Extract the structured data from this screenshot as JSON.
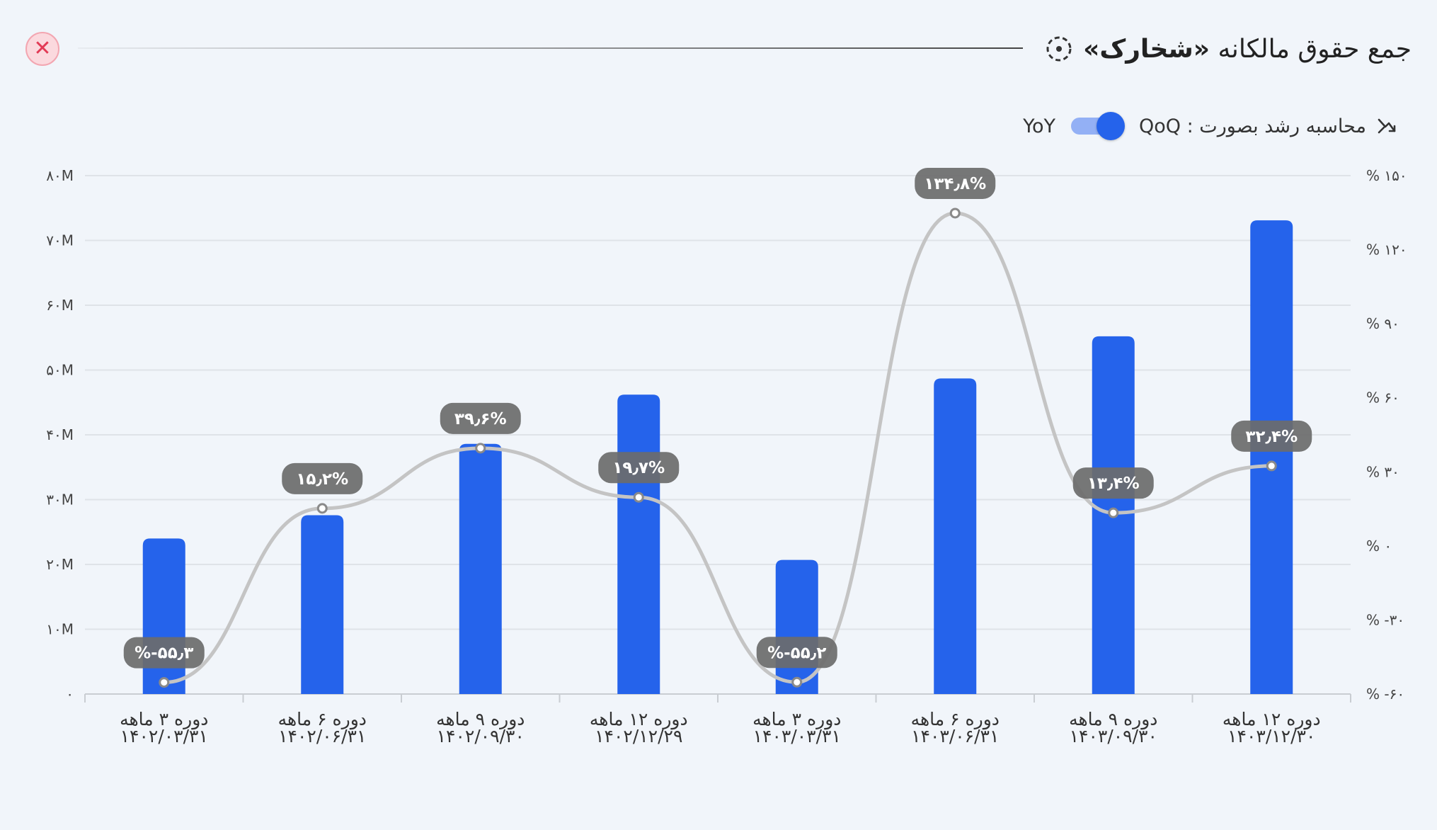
{
  "header": {
    "title_prefix": "جمع حقوق مالکانه",
    "title_symbol": "«شخارک»",
    "close_icon": "close-icon",
    "title_icon": "dashed-circle-icon"
  },
  "growth_toggle": {
    "label": "محاسبه رشد بصورت : QoQ",
    "alt_label": "YoY",
    "icon": "growth-arrow-icon",
    "state": "QoQ"
  },
  "colors": {
    "bar": "#2563eb",
    "line": "#c4c4c4",
    "pill": "#6b6b6b",
    "close": "#e23a55"
  },
  "chart_data": {
    "type": "bar",
    "title": "جمع حقوق مالکانه «شخارک»",
    "categories": [
      [
        "دوره ۳ ماهه",
        "۱۴۰۲/۰۳/۳۱"
      ],
      [
        "دوره ۶ ماهه",
        "۱۴۰۲/۰۶/۳۱"
      ],
      [
        "دوره ۹ ماهه",
        "۱۴۰۲/۰۹/۳۰"
      ],
      [
        "دوره ۱۲ ماهه",
        "۱۴۰۲/۱۲/۲۹"
      ],
      [
        "دوره ۳ ماهه",
        "۱۴۰۳/۰۳/۳۱"
      ],
      [
        "دوره ۶ ماهه",
        "۱۴۰۳/۰۶/۳۱"
      ],
      [
        "دوره ۹ ماهه",
        "۱۴۰۳/۰۹/۳۰"
      ],
      [
        "دوره ۱۲ ماهه",
        "۱۴۰۳/۱۲/۳۰"
      ]
    ],
    "series": [
      {
        "name": "جمع حقوق مالکانه",
        "type": "bar",
        "axis": "left",
        "values": [
          24,
          27.6,
          38.6,
          46.2,
          20.7,
          48.7,
          55.2,
          73.1
        ]
      },
      {
        "name": "رشد QoQ",
        "type": "line",
        "axis": "right",
        "values": [
          -55.3,
          15.2,
          39.6,
          19.7,
          -55.2,
          134.8,
          13.4,
          32.4
        ],
        "labels": [
          "%-۵۵٫۳",
          "۱۵٫۲%",
          "۳۹٫۶%",
          "۱۹٫۷%",
          "%-۵۵٫۲",
          "۱۳۴٫۸%",
          "۱۳٫۴%",
          "۳۲٫۴%"
        ]
      }
    ],
    "y_left": {
      "range": [
        0,
        80
      ],
      "ticks": [
        0,
        10,
        20,
        30,
        40,
        50,
        60,
        70,
        80
      ],
      "tick_labels": [
        "۰",
        "۱۰M",
        "۲۰M",
        "۳۰M",
        "۴۰M",
        "۵۰M",
        "۶۰M",
        "۷۰M",
        "۸۰M"
      ]
    },
    "y_right": {
      "range": [
        -60,
        150
      ],
      "ticks": [
        -60,
        -30,
        0,
        30,
        60,
        90,
        120,
        150
      ],
      "tick_labels": [
        "% -۶۰",
        "% -۳۰",
        "% ۰",
        "% ۳۰",
        "% ۶۰",
        "% ۹۰",
        "% ۱۲۰",
        "% ۱۵۰"
      ]
    },
    "grid": true,
    "legend": "none"
  }
}
